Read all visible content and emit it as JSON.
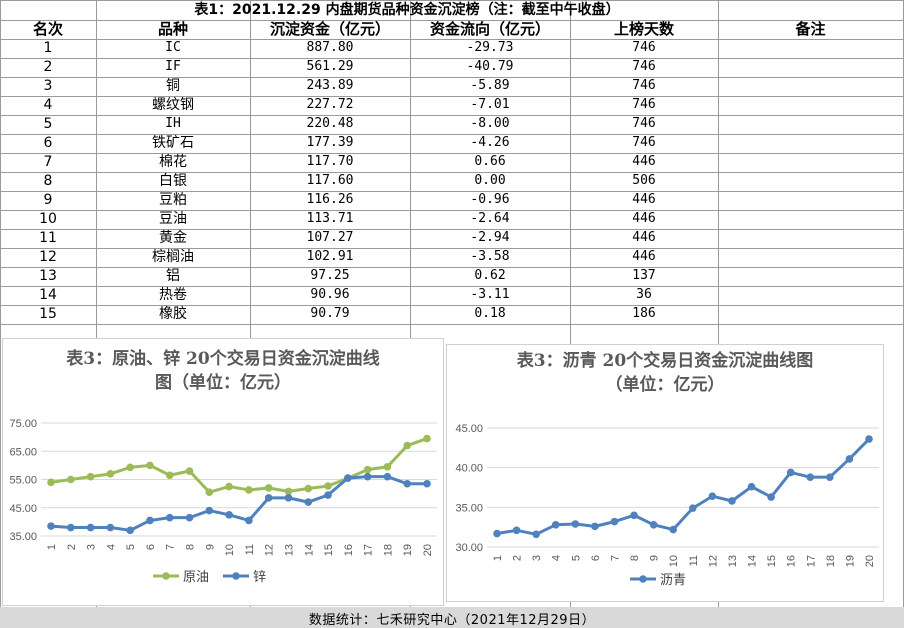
{
  "table": {
    "title": "表1：2021.12.29 内盘期货品种资金沉淀榜（注：截至中午收盘）",
    "headers": [
      "名次",
      "品种",
      "沉淀资金（亿元）",
      "资金流向（亿元）",
      "上榜天数",
      "备注"
    ],
    "rows": [
      [
        "1",
        "IC",
        "887.80",
        "-29.73",
        "746",
        ""
      ],
      [
        "2",
        "IF",
        "561.29",
        "-40.79",
        "746",
        ""
      ],
      [
        "3",
        "铜",
        "243.89",
        "-5.89",
        "746",
        ""
      ],
      [
        "4",
        "螺纹钢",
        "227.72",
        "-7.01",
        "746",
        ""
      ],
      [
        "5",
        "IH",
        "220.48",
        "-8.00",
        "746",
        ""
      ],
      [
        "6",
        "铁矿石",
        "177.39",
        "-4.26",
        "746",
        ""
      ],
      [
        "7",
        "棉花",
        "117.70",
        "0.66",
        "446",
        ""
      ],
      [
        "8",
        "白银",
        "117.60",
        "0.00",
        "506",
        ""
      ],
      [
        "9",
        "豆粕",
        "116.26",
        "-0.96",
        "446",
        ""
      ],
      [
        "10",
        "豆油",
        "113.71",
        "-2.64",
        "446",
        ""
      ],
      [
        "11",
        "黄金",
        "107.27",
        "-2.94",
        "446",
        ""
      ],
      [
        "12",
        "棕榈油",
        "102.91",
        "-3.58",
        "446",
        ""
      ],
      [
        "13",
        "铝",
        "97.25",
        "0.62",
        "137",
        ""
      ],
      [
        "14",
        "热卷",
        "90.96",
        "-3.11",
        "36",
        ""
      ],
      [
        "15",
        "橡胶",
        "90.79",
        "0.18",
        "186",
        ""
      ]
    ]
  },
  "footer": {
    "text": "数据统计：七禾研究中心（2021年12月29日）"
  },
  "chart_data": [
    {
      "type": "line",
      "title": "表3：原油、锌 20个交易日资金沉淀曲线图（单位：亿元）",
      "title_lines": [
        "表3：原油、锌 20个交易日资金沉淀曲线",
        "图（单位：亿元）"
      ],
      "x": [
        1,
        2,
        3,
        4,
        5,
        6,
        7,
        8,
        9,
        10,
        11,
        12,
        13,
        14,
        15,
        16,
        17,
        18,
        19,
        20
      ],
      "x_tick_labels": [
        "1",
        "2",
        "3",
        "4",
        "5",
        "6",
        "7",
        "8",
        "9",
        "10",
        "11",
        "12",
        "13",
        "14",
        "15",
        "16",
        "17",
        "18",
        "19",
        "20"
      ],
      "ylim": [
        35,
        75
      ],
      "y_ticks": [
        35,
        45,
        55,
        65,
        75
      ],
      "y_tick_labels": [
        "35.00",
        "45.00",
        "55.00",
        "65.00",
        "75.00"
      ],
      "series": [
        {
          "name": "原油",
          "color": "#9bbb59",
          "values": [
            54.0,
            55.0,
            56.0,
            57.0,
            59.3,
            60.0,
            56.5,
            58.0,
            50.5,
            52.5,
            51.3,
            52.0,
            50.8,
            51.8,
            52.7,
            55.5,
            58.5,
            59.5,
            67.0,
            69.5
          ]
        },
        {
          "name": "锌",
          "color": "#4f81bd",
          "values": [
            38.5,
            38.0,
            38.0,
            38.0,
            37.0,
            40.5,
            41.5,
            41.5,
            44.0,
            42.5,
            40.5,
            48.5,
            48.5,
            47.0,
            49.5,
            55.5,
            56.0,
            56.0,
            53.5,
            53.5
          ]
        }
      ],
      "legend_position": "bottom"
    },
    {
      "type": "line",
      "title": "表3：沥青 20个交易日资金沉淀曲线图（单位：亿元）",
      "title_lines": [
        "表3：沥青 20个交易日资金沉淀曲线图",
        "（单位：亿元）"
      ],
      "x": [
        1,
        2,
        3,
        4,
        5,
        6,
        7,
        8,
        9,
        10,
        11,
        12,
        13,
        14,
        15,
        16,
        17,
        18,
        19,
        20
      ],
      "x_tick_labels": [
        "1",
        "2",
        "3",
        "4",
        "5",
        "6",
        "7",
        "8",
        "9",
        "10",
        "11",
        "12",
        "13",
        "14",
        "15",
        "16",
        "17",
        "18",
        "19",
        "20"
      ],
      "ylim": [
        30,
        45
      ],
      "y_ticks": [
        30,
        35,
        40,
        45
      ],
      "y_tick_labels": [
        "30.00",
        "35.00",
        "40.00",
        "45.00"
      ],
      "series": [
        {
          "name": "沥青",
          "color": "#4f81bd",
          "values": [
            31.7,
            32.1,
            31.6,
            32.8,
            32.9,
            32.6,
            33.2,
            34.0,
            32.8,
            32.2,
            34.9,
            36.4,
            35.8,
            37.6,
            36.3,
            39.4,
            38.8,
            38.8,
            41.1,
            43.6
          ]
        }
      ],
      "legend_position": "bottom"
    }
  ]
}
